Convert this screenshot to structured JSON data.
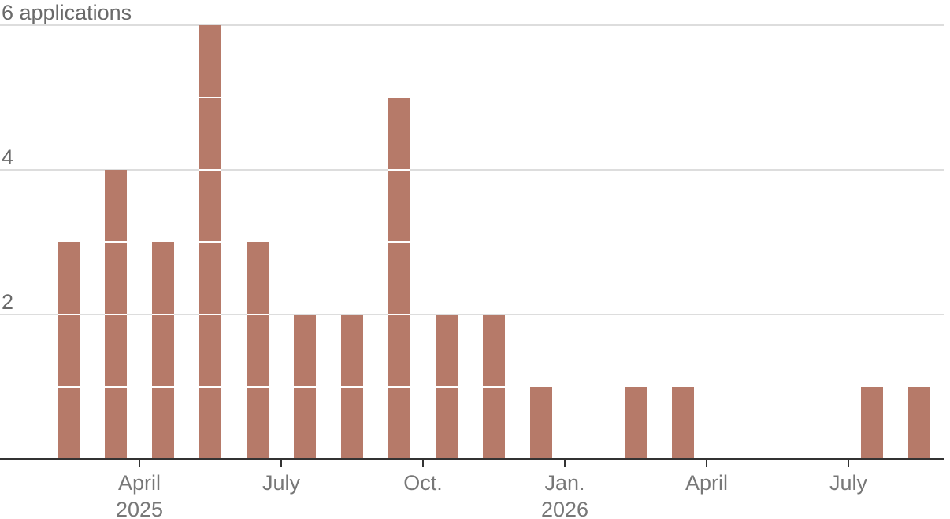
{
  "chart_data": {
    "type": "bar",
    "title": "",
    "xlabel": "",
    "ylabel": "applications",
    "ylim": [
      0,
      6
    ],
    "yticks": [
      {
        "value": 2,
        "label": "2"
      },
      {
        "value": 4,
        "label": "4"
      },
      {
        "value": 6,
        "label": "6 applications"
      }
    ],
    "grid": true,
    "bar_color": "#b67a69",
    "gridline_color": "#dddddd",
    "axis_color": "#333333",
    "categories": [
      "2025-02",
      "2025-03",
      "2025-04",
      "2025-05",
      "2025-06",
      "2025-07",
      "2025-08",
      "2025-09",
      "2025-10",
      "2025-11",
      "2025-12",
      "2026-01",
      "2026-02",
      "2026-03",
      "2026-04",
      "2026-05",
      "2026-06",
      "2026-07",
      "2026-08"
    ],
    "values": [
      3,
      4,
      3,
      6,
      3,
      2,
      2,
      5,
      2,
      2,
      1,
      0,
      1,
      1,
      0,
      0,
      0,
      1,
      1
    ],
    "xticks": [
      {
        "category": "2025-04",
        "label": "April",
        "sublabel": "2025"
      },
      {
        "category": "2025-07",
        "label": "July",
        "sublabel": ""
      },
      {
        "category": "2025-10",
        "label": "Oct.",
        "sublabel": ""
      },
      {
        "category": "2026-01",
        "label": "Jan.",
        "sublabel": "2026"
      },
      {
        "category": "2026-04",
        "label": "April",
        "sublabel": ""
      },
      {
        "category": "2026-07",
        "label": "July",
        "sublabel": ""
      }
    ]
  }
}
